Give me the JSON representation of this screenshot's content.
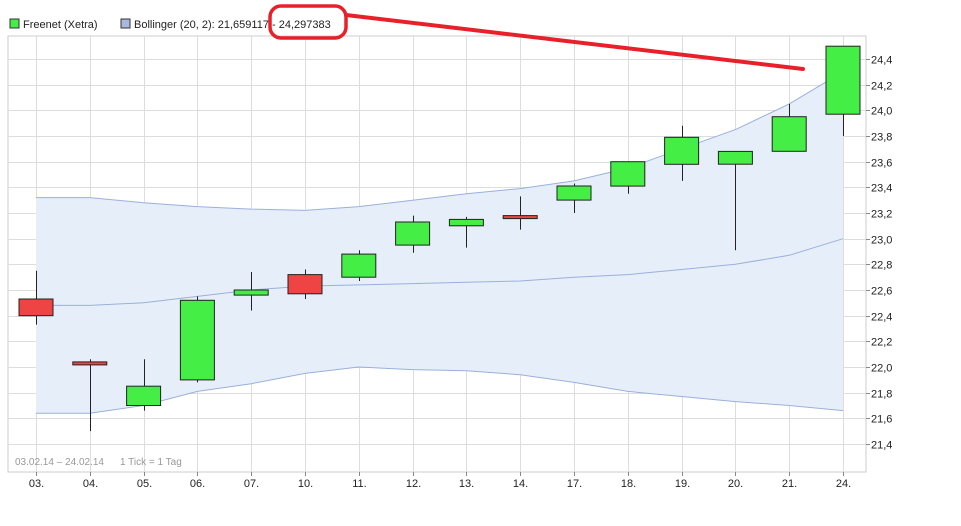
{
  "legend": {
    "series1_label": "Freenet (Xetra)",
    "series1_color": "#44ee44",
    "series2_prefix": "Bollinger (20, 2): 21,659117 - ",
    "series2_highlight": "24,297383",
    "series2_color": "#aab8e0"
  },
  "footer": {
    "range": "03.02.14 – 24.02.14",
    "tick_info": "1 Tick = 1 Tag"
  },
  "colors": {
    "up": "#44ee44",
    "down": "#ee4444",
    "band_fill": "#e6eefa",
    "band_line": "#9ab0dc",
    "annotation": "#e8202a",
    "grid": "#dddddd"
  },
  "chart_data": {
    "type": "candlestick",
    "y_axis_side": "right",
    "ylim": [
      21.3,
      24.55
    ],
    "y_ticks": [
      21.4,
      21.6,
      21.8,
      22.0,
      22.2,
      22.4,
      22.6,
      22.8,
      23.0,
      23.2,
      23.4,
      23.6,
      23.8,
      24.0,
      24.2,
      24.4
    ],
    "y_tick_labels": [
      "21,4",
      "21,6",
      "21,8",
      "22,0",
      "22,2",
      "22,4",
      "22,6",
      "22,8",
      "23,0",
      "23,2",
      "23,4",
      "23,6",
      "23,8",
      "24,0",
      "24,2",
      "24,4"
    ],
    "x_labels": [
      "03.",
      "04.",
      "05.",
      "06.",
      "07.",
      "10.",
      "11.",
      "12.",
      "13.",
      "14.",
      "17.",
      "18.",
      "19.",
      "20.",
      "21.",
      "24."
    ],
    "candles": [
      {
        "open": 22.53,
        "high": 22.75,
        "low": 22.33,
        "close": 22.4
      },
      {
        "open": 22.04,
        "high": 22.06,
        "low": 21.5,
        "close": 22.02
      },
      {
        "open": 21.7,
        "high": 22.06,
        "low": 21.66,
        "close": 21.85
      },
      {
        "open": 21.9,
        "high": 22.55,
        "low": 21.88,
        "close": 22.52
      },
      {
        "open": 22.56,
        "high": 22.74,
        "low": 22.44,
        "close": 22.6
      },
      {
        "open": 22.72,
        "high": 22.76,
        "low": 22.53,
        "close": 22.57
      },
      {
        "open": 22.7,
        "high": 22.91,
        "low": 22.67,
        "close": 22.88
      },
      {
        "open": 22.95,
        "high": 23.18,
        "low": 22.89,
        "close": 23.13
      },
      {
        "open": 23.1,
        "high": 23.17,
        "low": 22.93,
        "close": 23.15
      },
      {
        "open": 23.18,
        "high": 23.33,
        "low": 23.07,
        "close": 23.17
      },
      {
        "open": 23.3,
        "high": 23.43,
        "low": 23.2,
        "close": 23.41
      },
      {
        "open": 23.41,
        "high": 23.6,
        "low": 23.35,
        "close": 23.6
      },
      {
        "open": 23.58,
        "high": 23.88,
        "low": 23.45,
        "close": 23.79
      },
      {
        "open": 23.58,
        "high": 23.68,
        "low": 22.91,
        "close": 23.68
      },
      {
        "open": 23.68,
        "high": 24.05,
        "low": 23.68,
        "close": 23.95
      },
      {
        "open": 23.97,
        "high": 24.5,
        "low": 23.8,
        "close": 24.5
      }
    ],
    "bollinger": {
      "upper": [
        23.32,
        23.32,
        23.28,
        23.25,
        23.23,
        23.22,
        23.25,
        23.3,
        23.35,
        23.39,
        23.45,
        23.55,
        23.7,
        23.85,
        24.05,
        24.3
      ],
      "middle": [
        22.48,
        22.48,
        22.5,
        22.55,
        22.6,
        22.63,
        22.64,
        22.65,
        22.66,
        22.67,
        22.7,
        22.72,
        22.76,
        22.8,
        22.87,
        23.0
      ],
      "lower": [
        21.64,
        21.64,
        21.7,
        21.81,
        21.87,
        21.95,
        22.0,
        21.98,
        21.97,
        21.94,
        21.88,
        21.81,
        21.77,
        21.73,
        21.7,
        21.66
      ]
    }
  }
}
